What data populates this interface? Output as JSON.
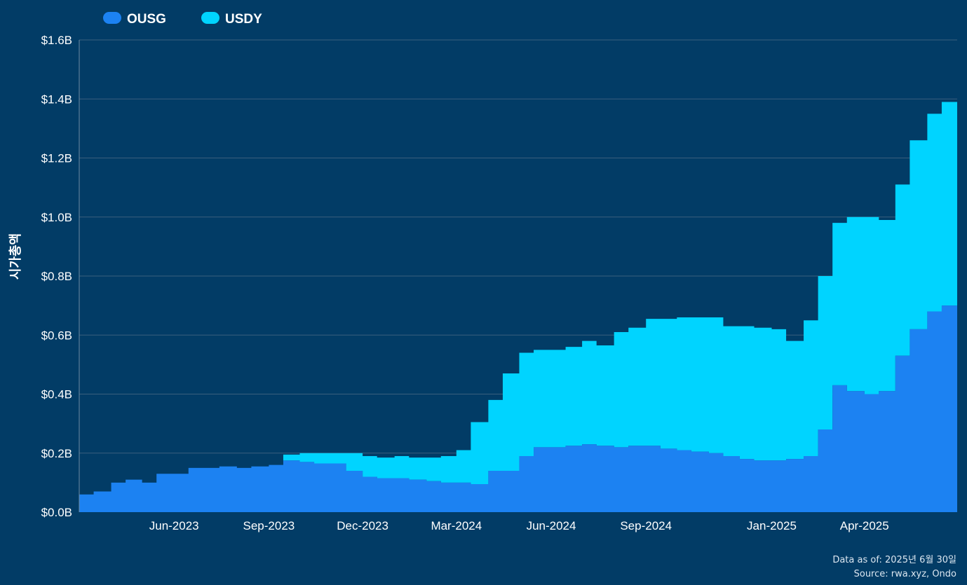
{
  "chart_data": {
    "type": "area",
    "stacked": true,
    "ylabel": "시가총액",
    "xlabel": "",
    "ylim": [
      0,
      1.6
    ],
    "yticks": [
      "$0.0B",
      "$0.2B",
      "$0.4B",
      "$0.6B",
      "$0.8B",
      "$1.0B",
      "$1.2B",
      "$1.4B",
      "$1.6B"
    ],
    "ytick_values": [
      0,
      0.2,
      0.4,
      0.6,
      0.8,
      1.0,
      1.2,
      1.4,
      1.6
    ],
    "xlim": [
      "2023-03-01",
      "2025-06-30"
    ],
    "xticks": [
      "Jun-2023",
      "Sep-2023",
      "Dec-2023",
      "Mar-2024",
      "Jun-2024",
      "Sep-2024",
      "Jan-2025",
      "Apr-2025"
    ],
    "xtick_dates": [
      "2023-06-01",
      "2023-09-01",
      "2023-12-01",
      "2024-03-01",
      "2024-06-01",
      "2024-09-01",
      "2025-01-01",
      "2025-04-01"
    ],
    "grid": true,
    "legend_position": "top-left",
    "colors": {
      "OUSG": "#1c82f2",
      "USDY": "#00d4ff",
      "background": "#023c66",
      "grid": "#3a5f7d"
    },
    "dates": [
      "2023-03-01",
      "2023-03-15",
      "2023-04-01",
      "2023-04-15",
      "2023-05-01",
      "2023-05-15",
      "2023-06-01",
      "2023-06-15",
      "2023-07-01",
      "2023-07-15",
      "2023-08-01",
      "2023-08-15",
      "2023-09-01",
      "2023-09-15",
      "2023-10-01",
      "2023-10-15",
      "2023-11-01",
      "2023-11-15",
      "2023-12-01",
      "2023-12-15",
      "2024-01-01",
      "2024-01-15",
      "2024-02-01",
      "2024-02-15",
      "2024-03-01",
      "2024-03-15",
      "2024-04-01",
      "2024-04-15",
      "2024-05-01",
      "2024-05-15",
      "2024-06-01",
      "2024-06-15",
      "2024-07-01",
      "2024-07-15",
      "2024-08-01",
      "2024-08-15",
      "2024-09-01",
      "2024-09-15",
      "2024-10-01",
      "2024-10-15",
      "2024-11-01",
      "2024-11-15",
      "2024-12-01",
      "2024-12-15",
      "2025-01-01",
      "2025-01-15",
      "2025-02-01",
      "2025-02-15",
      "2025-03-01",
      "2025-03-15",
      "2025-04-01",
      "2025-04-15",
      "2025-05-01",
      "2025-05-15",
      "2025-06-01",
      "2025-06-15",
      "2025-06-30"
    ],
    "series": [
      {
        "name": "OUSG",
        "values": [
          0.06,
          0.07,
          0.1,
          0.11,
          0.1,
          0.13,
          0.13,
          0.15,
          0.15,
          0.155,
          0.15,
          0.155,
          0.16,
          0.175,
          0.17,
          0.165,
          0.165,
          0.14,
          0.12,
          0.115,
          0.115,
          0.11,
          0.105,
          0.1,
          0.1,
          0.095,
          0.14,
          0.14,
          0.19,
          0.22,
          0.22,
          0.225,
          0.23,
          0.225,
          0.22,
          0.225,
          0.225,
          0.215,
          0.21,
          0.205,
          0.2,
          0.19,
          0.18,
          0.175,
          0.175,
          0.18,
          0.19,
          0.28,
          0.43,
          0.41,
          0.4,
          0.41,
          0.53,
          0.62,
          0.68,
          0.7,
          0.71
        ]
      },
      {
        "name": "USDY",
        "values": [
          0,
          0,
          0,
          0,
          0,
          0,
          0,
          0,
          0,
          0,
          0,
          0,
          0,
          0.02,
          0.03,
          0.035,
          0.035,
          0.06,
          0.07,
          0.07,
          0.075,
          0.075,
          0.08,
          0.09,
          0.11,
          0.21,
          0.24,
          0.33,
          0.35,
          0.33,
          0.33,
          0.335,
          0.35,
          0.34,
          0.39,
          0.4,
          0.43,
          0.44,
          0.45,
          0.455,
          0.46,
          0.44,
          0.45,
          0.45,
          0.445,
          0.4,
          0.46,
          0.52,
          0.55,
          0.59,
          0.6,
          0.58,
          0.58,
          0.64,
          0.67,
          0.69,
          0.69
        ]
      }
    ]
  },
  "legend": [
    {
      "label": "OUSG",
      "color": "#1c82f2"
    },
    {
      "label": "USDY",
      "color": "#00d4ff"
    }
  ],
  "notes": {
    "as_of": "Data as of: 2025년 6월 30일",
    "source": "Source: rwa.xyz, Ondo"
  }
}
